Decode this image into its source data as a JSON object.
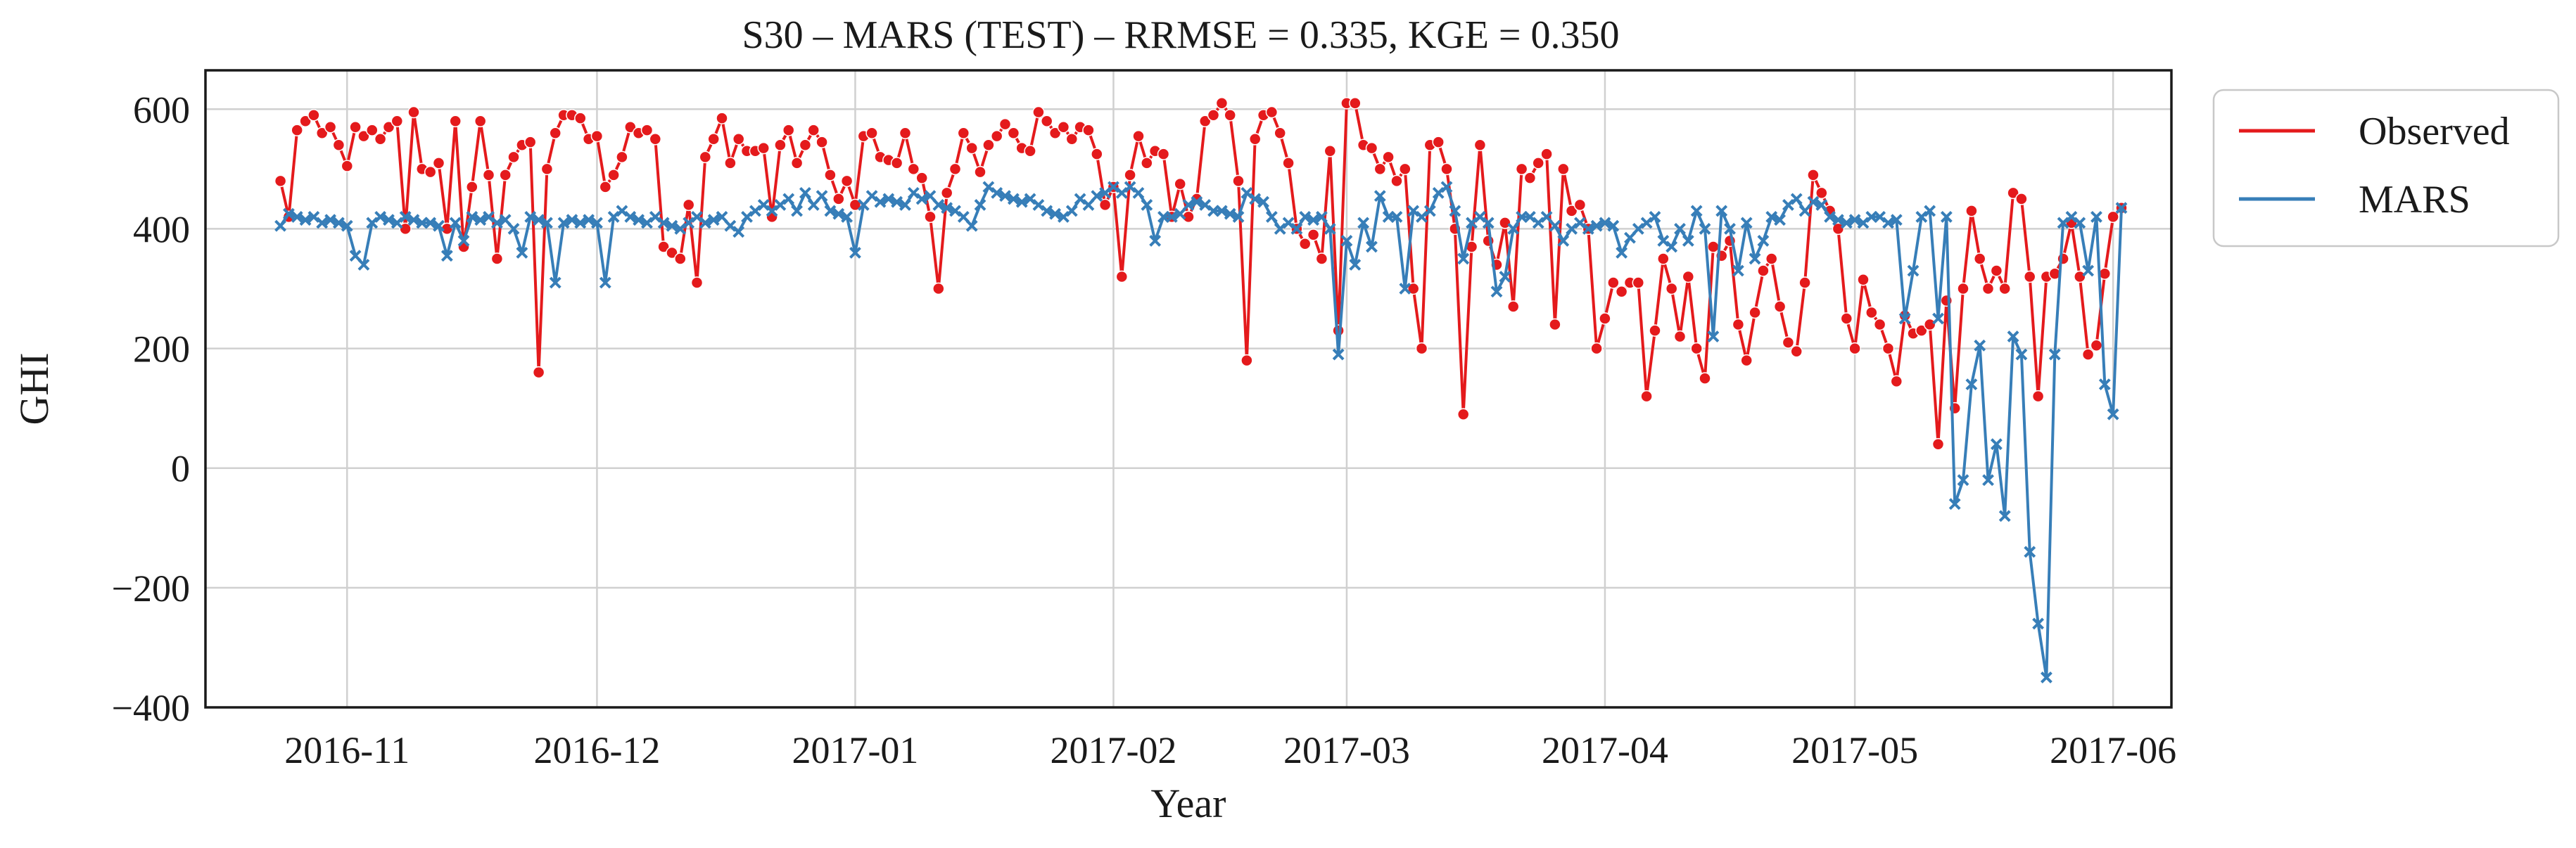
{
  "chart_data": {
    "type": "line",
    "title": "S30 – MARS (TEST) – RRMSE = 0.335, KGE = 0.350",
    "xlabel": "Year",
    "ylabel": "GHI",
    "xlim": [
      "2016-10-15",
      "2017-06-08"
    ],
    "ylim": [
      -400,
      665
    ],
    "yticks": [
      -400,
      -200,
      0,
      200,
      400,
      600
    ],
    "ytick_labels": [
      "−400",
      "−200",
      "0",
      "200",
      "400",
      "600"
    ],
    "xticks": [
      "2016-11-01",
      "2016-12-01",
      "2017-01-01",
      "2017-02-01",
      "2017-03-01",
      "2017-04-01",
      "2017-05-01",
      "2017-06-01"
    ],
    "xtick_labels": [
      "2016-11",
      "2016-12",
      "2017-01",
      "2017-02",
      "2017-03",
      "2017-04",
      "2017-05",
      "2017-06"
    ],
    "grid": true,
    "legend_position": "outside-right-top",
    "x_start": "2016-10-24",
    "series": [
      {
        "name": "Observed",
        "color": "#e41a1c",
        "marker": "circle",
        "values": [
          480,
          420,
          565,
          580,
          590,
          560,
          570,
          540,
          505,
          570,
          555,
          565,
          550,
          570,
          580,
          400,
          595,
          500,
          495,
          510,
          400,
          580,
          370,
          470,
          580,
          490,
          350,
          490,
          520,
          540,
          545,
          160,
          500,
          560,
          590,
          590,
          585,
          550,
          555,
          470,
          490,
          520,
          570,
          560,
          565,
          550,
          370,
          360,
          350,
          440,
          310,
          520,
          550,
          585,
          510,
          550,
          530,
          530,
          535,
          420,
          540,
          565,
          510,
          540,
          565,
          545,
          490,
          450,
          480,
          440,
          555,
          560,
          520,
          515,
          510,
          560,
          500,
          485,
          420,
          300,
          460,
          500,
          560,
          535,
          495,
          540,
          555,
          575,
          560,
          535,
          530,
          595,
          580,
          560,
          570,
          550,
          570,
          565,
          525,
          440,
          470,
          320,
          490,
          555,
          510,
          530,
          525,
          420,
          475,
          420,
          450,
          580,
          590,
          610,
          590,
          480,
          180,
          550,
          590,
          595,
          560,
          510,
          400,
          375,
          390,
          350,
          530,
          230,
          610,
          610,
          540,
          535,
          500,
          520,
          480,
          500,
          300,
          200,
          540,
          545,
          500,
          400,
          90,
          370,
          540,
          380,
          340,
          410,
          270,
          500,
          485,
          510,
          525,
          240,
          500,
          430,
          440,
          400,
          200,
          250,
          310,
          295,
          310,
          310,
          120,
          230,
          350,
          300,
          220,
          320,
          200,
          150,
          370,
          355,
          380,
          240,
          180,
          260,
          330,
          350,
          270,
          210,
          195,
          310,
          490,
          460,
          430,
          400,
          250,
          200,
          315,
          260,
          240,
          200,
          145,
          255,
          225,
          230,
          240,
          40,
          280,
          100,
          300,
          430,
          350,
          300,
          330,
          300,
          460,
          450,
          320,
          120,
          320,
          325,
          350,
          410,
          320,
          190,
          205,
          325,
          420,
          435
        ]
      },
      {
        "name": "MARS",
        "color": "#377eb8",
        "marker": "x",
        "values": [
          405,
          425,
          420,
          415,
          420,
          410,
          415,
          410,
          405,
          355,
          340,
          410,
          420,
          415,
          410,
          420,
          415,
          410,
          410,
          405,
          355,
          410,
          380,
          420,
          415,
          420,
          410,
          415,
          400,
          360,
          420,
          415,
          410,
          310,
          410,
          415,
          410,
          415,
          410,
          310,
          420,
          430,
          420,
          415,
          410,
          420,
          410,
          405,
          400,
          410,
          420,
          410,
          415,
          420,
          405,
          395,
          420,
          430,
          440,
          430,
          440,
          450,
          430,
          460,
          440,
          455,
          430,
          425,
          420,
          360,
          440,
          455,
          445,
          450,
          445,
          440,
          460,
          450,
          455,
          440,
          435,
          430,
          420,
          405,
          440,
          470,
          460,
          455,
          450,
          445,
          450,
          440,
          430,
          425,
          420,
          430,
          450,
          440,
          455,
          460,
          470,
          460,
          470,
          460,
          440,
          380,
          420,
          420,
          425,
          440,
          445,
          440,
          430,
          430,
          425,
          420,
          460,
          450,
          445,
          420,
          400,
          410,
          400,
          420,
          415,
          420,
          400,
          190,
          380,
          340,
          410,
          370,
          455,
          420,
          420,
          300,
          430,
          420,
          430,
          460,
          470,
          430,
          350,
          410,
          420,
          410,
          295,
          320,
          400,
          420,
          420,
          410,
          420,
          405,
          380,
          400,
          410,
          400,
          405,
          410,
          405,
          360,
          385,
          400,
          410,
          420,
          380,
          370,
          400,
          380,
          430,
          400,
          220,
          430,
          400,
          330,
          410,
          350,
          380,
          420,
          415,
          440,
          450,
          430,
          445,
          440,
          420,
          415,
          410,
          415,
          410,
          420,
          420,
          410,
          415,
          250,
          330,
          420,
          430,
          250,
          420,
          -60,
          -20,
          140,
          205,
          -20,
          40,
          -80,
          220,
          190,
          -140,
          -260,
          -350,
          190,
          410,
          420,
          410,
          330,
          420,
          140,
          90,
          435
        ]
      }
    ]
  }
}
